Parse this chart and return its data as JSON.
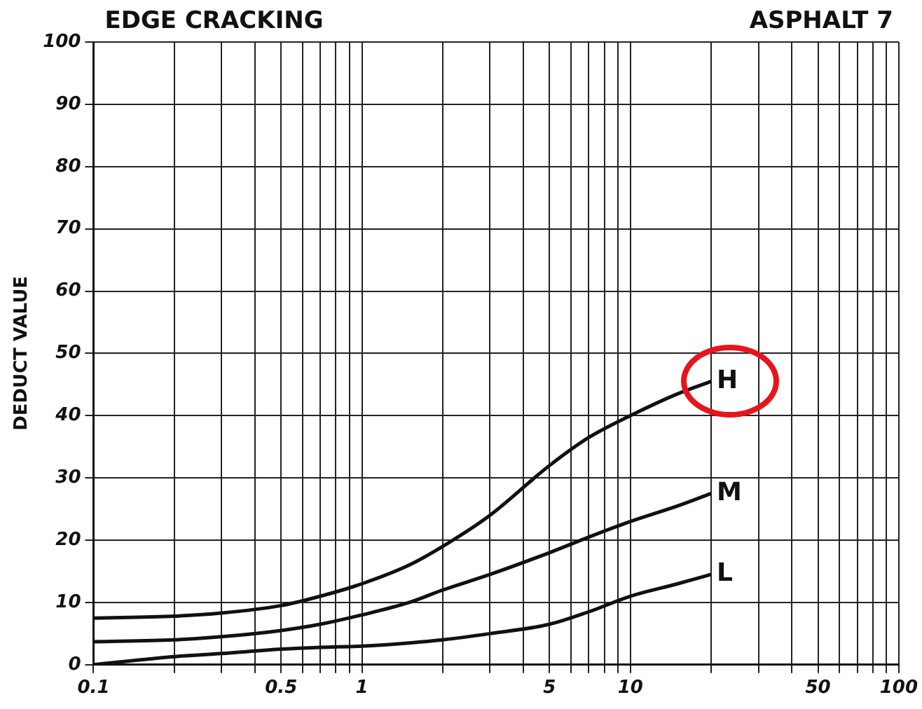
{
  "chart_data": {
    "type": "line",
    "title": "EDGE CRACKING",
    "annotations": [
      "ASPHALT 7"
    ],
    "ylabel": "DEDUCT VALUE",
    "log": "x",
    "xlim": [
      0.1,
      100
    ],
    "ylim": [
      0,
      100
    ],
    "xticks": [
      0.1,
      {
        "value": 0.2,
        "label": null
      },
      {
        "value": 0.3,
        "label": null
      },
      {
        "value": 0.4,
        "label": null
      },
      0.5,
      {
        "value": 0.6,
        "label": null
      },
      {
        "value": 0.7,
        "label": null
      },
      {
        "value": 0.8,
        "label": null
      },
      {
        "value": 0.9,
        "label": null
      },
      1,
      {
        "value": 2,
        "label": null
      },
      {
        "value": 3,
        "label": null
      },
      {
        "value": 4,
        "label": null
      },
      5,
      {
        "value": 6,
        "label": null
      },
      {
        "value": 7,
        "label": null
      },
      {
        "value": 8,
        "label": null
      },
      {
        "value": 9,
        "label": null
      },
      10,
      {
        "value": 20,
        "label": null
      },
      {
        "value": 30,
        "label": null
      },
      {
        "value": 40,
        "label": null
      },
      50,
      {
        "value": 60,
        "label": null
      },
      {
        "value": 70,
        "label": null
      },
      {
        "value": 80,
        "label": null
      },
      {
        "value": 90,
        "label": null
      },
      100
    ],
    "yticks": [
      0,
      10,
      20,
      30,
      40,
      50,
      60,
      70,
      80,
      90,
      100
    ],
    "grid": true,
    "legend": false,
    "marker": "none",
    "line_style": "solid",
    "x": [
      0.1,
      0.2,
      0.3,
      0.5,
      0.7,
      1,
      1.5,
      2,
      3,
      5,
      7,
      10,
      15,
      20
    ],
    "series": [
      {
        "name": "H",
        "color": "#111111",
        "values": [
          7.5,
          7.8,
          8.3,
          9.5,
          11,
          13,
          16,
          19,
          24,
          32,
          36.5,
          40,
          43.5,
          45.5
        ]
      },
      {
        "name": "M",
        "color": "#111111",
        "values": [
          3.7,
          4,
          4.5,
          5.5,
          6.5,
          8,
          10,
          12,
          14.5,
          18,
          20.5,
          23,
          25.5,
          27.5
        ]
      },
      {
        "name": "L",
        "color": "#111111",
        "values": [
          0,
          1.3,
          1.8,
          2.5,
          2.8,
          3,
          3.5,
          4,
          5,
          6.5,
          8.5,
          11,
          13,
          14.5
        ]
      }
    ]
  }
}
